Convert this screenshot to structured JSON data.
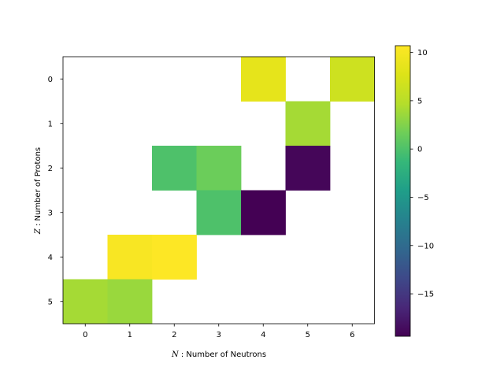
{
  "chart_data": {
    "type": "heatmap",
    "xlabel_symbol": "N",
    "xlabel_text": " : Number of Neutrons",
    "ylabel_symbol": "Z",
    "ylabel_text": " : Number of Protons",
    "x_ticks": [
      "0",
      "1",
      "2",
      "3",
      "4",
      "5",
      "6"
    ],
    "y_ticks": [
      "0",
      "1",
      "2",
      "3",
      "4",
      "5"
    ],
    "colorbar": {
      "colormap": "viridis",
      "vmin": -19.4,
      "vmax": 10.7,
      "ticks": [
        10,
        5,
        0,
        -5,
        -10,
        -15
      ],
      "tick_labels": [
        "10",
        "5",
        "0",
        "−5",
        "−10",
        "−15"
      ]
    },
    "cells": [
      {
        "z": 0,
        "n": 4,
        "value": 8.5
      },
      {
        "z": 0,
        "n": 6,
        "value": 6.5
      },
      {
        "z": 1,
        "n": 5,
        "value": 4.0
      },
      {
        "z": 2,
        "n": 2,
        "value": 0.0
      },
      {
        "z": 2,
        "n": 3,
        "value": 1.5
      },
      {
        "z": 2,
        "n": 5,
        "value": -19.0
      },
      {
        "z": 3,
        "n": 3,
        "value": 0.0
      },
      {
        "z": 3,
        "n": 4,
        "value": -19.4
      },
      {
        "z": 4,
        "n": 1,
        "value": 10.2
      },
      {
        "z": 4,
        "n": 2,
        "value": 10.7
      },
      {
        "z": 5,
        "n": 0,
        "value": 4.0
      },
      {
        "z": 5,
        "n": 1,
        "value": 3.5
      }
    ]
  }
}
